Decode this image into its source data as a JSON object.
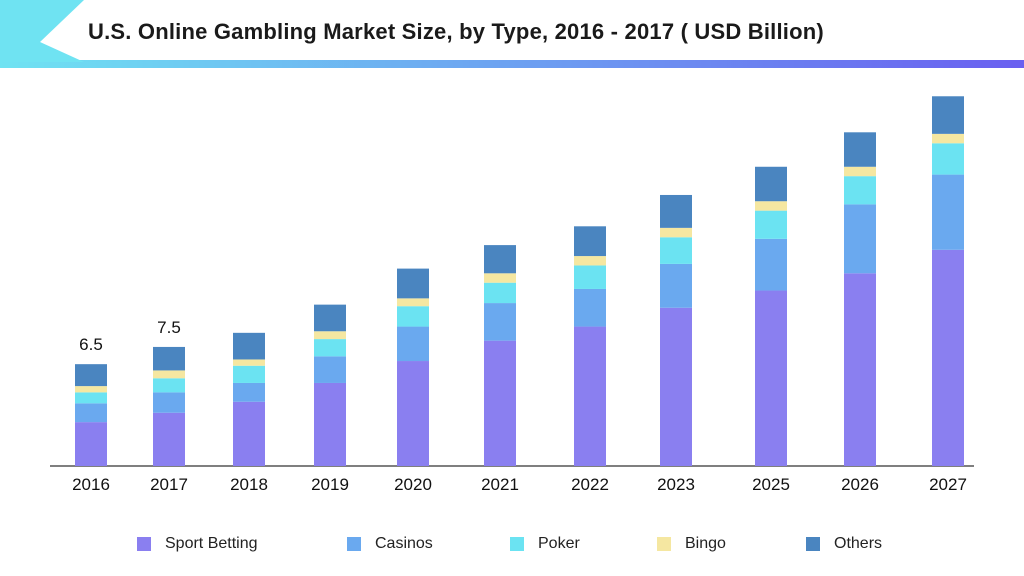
{
  "title": "U.S. Online Gambling Market Size, by Type, 2016 - 2017 ( USD Billion)",
  "colors": {
    "header_gradient_start": "#6fe3f2",
    "header_gradient_end": "#6a5ff0",
    "axis": "#555555",
    "text": "#111111"
  },
  "chart_data": {
    "type": "bar",
    "stacked": true,
    "categories": [
      "2016",
      "2017",
      "2018",
      "2019",
      "2020",
      "2021",
      "2022",
      "2023",
      "2025",
      "2026",
      "2027"
    ],
    "series": [
      {
        "name": "Sport Betting",
        "color": "#8a7ff0",
        "values": [
          2.8,
          3.4,
          4.1,
          5.3,
          6.7,
          8.0,
          8.9,
          10.1,
          11.2,
          12.3,
          13.8
        ]
      },
      {
        "name": "Casinos",
        "color": "#6aa9ef",
        "values": [
          1.2,
          1.3,
          1.2,
          1.7,
          2.2,
          2.4,
          2.4,
          2.8,
          3.3,
          4.4,
          4.8
        ]
      },
      {
        "name": "Poker",
        "color": "#6be3f2",
        "values": [
          0.7,
          0.9,
          1.1,
          1.1,
          1.3,
          1.3,
          1.5,
          1.7,
          1.8,
          1.8,
          2.0
        ]
      },
      {
        "name": "Bingo",
        "color": "#f5e7a1",
        "values": [
          0.4,
          0.5,
          0.4,
          0.5,
          0.5,
          0.6,
          0.6,
          0.6,
          0.6,
          0.6,
          0.6
        ]
      },
      {
        "name": "Others",
        "color": "#4a85c0",
        "values": [
          1.4,
          1.5,
          1.7,
          1.7,
          1.9,
          1.8,
          1.9,
          2.1,
          2.2,
          2.2,
          2.4
        ]
      }
    ],
    "data_labels": [
      {
        "category": "2016",
        "text": "6.5"
      },
      {
        "category": "2017",
        "text": "7.5"
      }
    ],
    "ylim": [
      0,
      24
    ],
    "grid": false,
    "legend_position": "bottom"
  }
}
